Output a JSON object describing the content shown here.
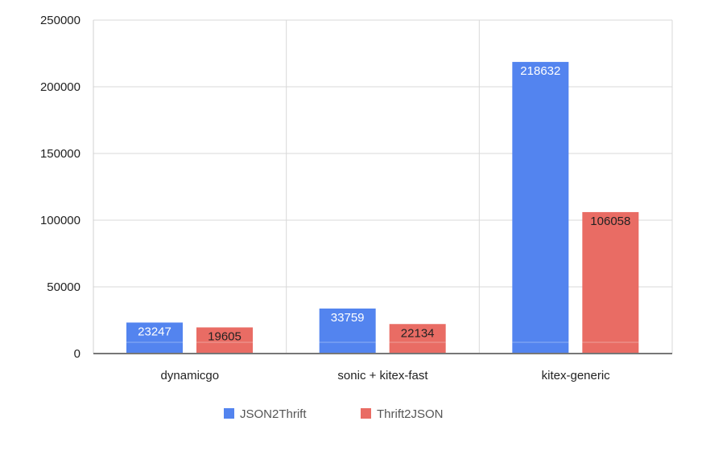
{
  "chart_data": {
    "type": "bar",
    "categories": [
      "dynamicgo",
      "sonic + kitex-fast",
      "kitex-generic"
    ],
    "series": [
      {
        "name": "JSON2Thrift",
        "values": [
          23247,
          33759,
          218632
        ],
        "color": "#5384ef",
        "label_color": "#ffffff"
      },
      {
        "name": "Thrift2JSON",
        "values": [
          19605,
          22134,
          106058
        ],
        "color": "#e96c64",
        "label_color": "#222222"
      }
    ],
    "title": "",
    "xlabel": "",
    "ylabel": "",
    "ylim": [
      0,
      250000
    ],
    "yticks": [
      "0",
      "50000",
      "100000",
      "150000",
      "200000",
      "250000"
    ],
    "grid": true,
    "legend": "bottom",
    "data_labels": true
  }
}
